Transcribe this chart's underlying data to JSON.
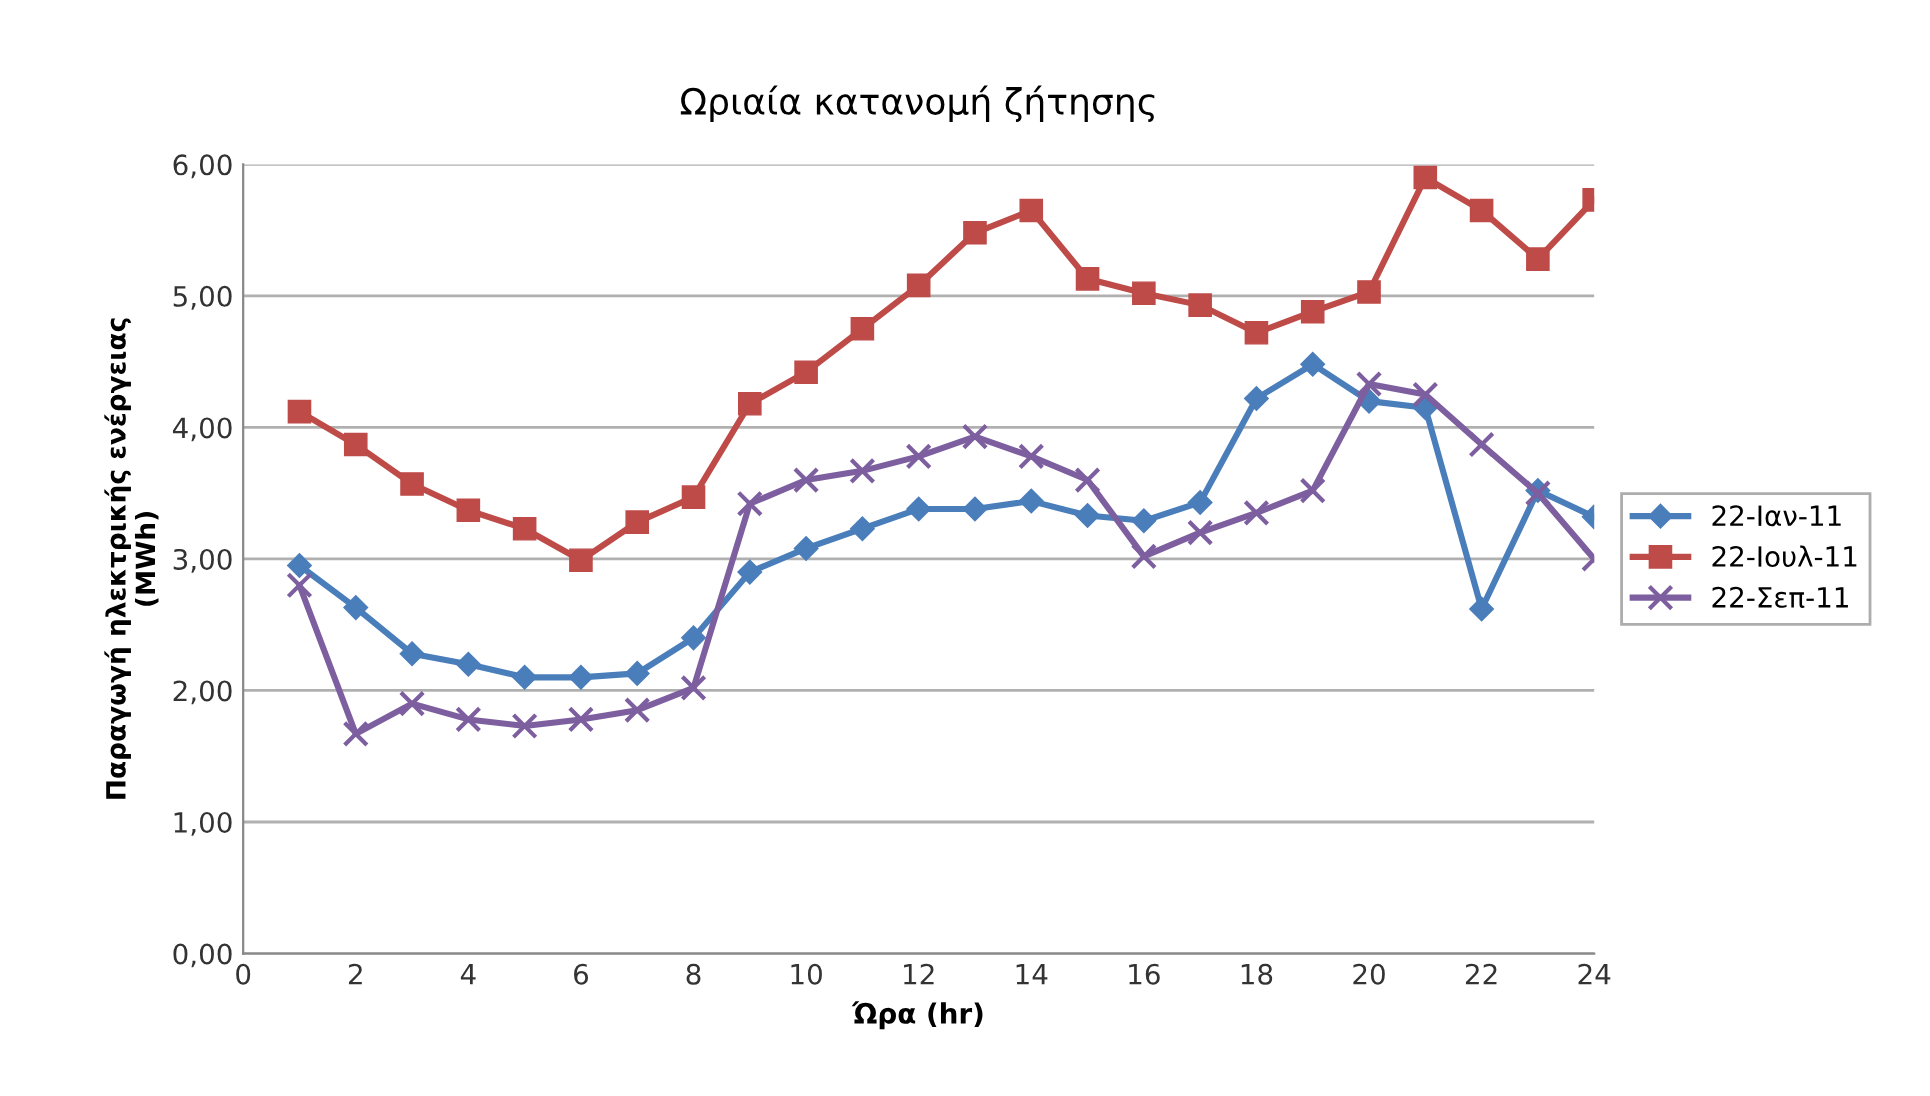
{
  "chart_data": {
    "type": "line",
    "title": "Ωριαία κατανομή ζήτησης",
    "xlabel": "Ώρα (hr)",
    "ylabel": "Παραγωγή ηλεκτρικής ενέργειας\n(MWh)",
    "x": [
      1,
      2,
      3,
      4,
      5,
      6,
      7,
      8,
      9,
      10,
      11,
      12,
      13,
      14,
      15,
      16,
      17,
      18,
      19,
      20,
      21,
      22,
      23,
      24
    ],
    "series": [
      {
        "name": "22-Ιαν-11",
        "color": "#4a7ebb",
        "marker": "diamond",
        "values": [
          2.95,
          2.63,
          2.28,
          2.2,
          2.1,
          2.1,
          2.13,
          2.4,
          2.9,
          3.08,
          3.23,
          3.38,
          3.38,
          3.44,
          3.33,
          3.29,
          3.43,
          4.22,
          4.48,
          4.2,
          4.15,
          2.62,
          3.52,
          3.32
        ]
      },
      {
        "name": "22-Ιουλ-11",
        "color": "#be4b48",
        "marker": "square",
        "values": [
          4.12,
          3.87,
          3.57,
          3.37,
          3.23,
          2.99,
          3.28,
          3.47,
          4.18,
          4.42,
          4.75,
          5.08,
          5.48,
          5.65,
          5.13,
          5.02,
          4.93,
          4.72,
          4.88,
          5.03,
          5.9,
          5.65,
          5.28,
          5.73
        ]
      },
      {
        "name": "22-Σεπ-11",
        "color": "#7d5fa0",
        "marker": "cross",
        "values": [
          2.8,
          1.67,
          1.9,
          1.78,
          1.73,
          1.78,
          1.85,
          2.02,
          3.42,
          3.6,
          3.67,
          3.78,
          3.93,
          3.78,
          3.6,
          3.02,
          3.2,
          3.35,
          3.52,
          4.33,
          4.25,
          3.87,
          3.5,
          3.0
        ]
      }
    ],
    "xlim": [
      0,
      24
    ],
    "xticks": [
      0,
      2,
      4,
      6,
      8,
      10,
      12,
      14,
      16,
      18,
      20,
      22,
      24
    ],
    "ylim": [
      0,
      6
    ],
    "yticks": [
      {
        "value": 0,
        "label": "0,00"
      },
      {
        "value": 1,
        "label": "1,00"
      },
      {
        "value": 2,
        "label": "2,00"
      },
      {
        "value": 3,
        "label": "3,00"
      },
      {
        "value": 4,
        "label": "4,00"
      },
      {
        "value": 5,
        "label": "5,00"
      },
      {
        "value": 6,
        "label": "6,00"
      }
    ],
    "grid": "y",
    "legend": "right",
    "line_style": "solid"
  }
}
